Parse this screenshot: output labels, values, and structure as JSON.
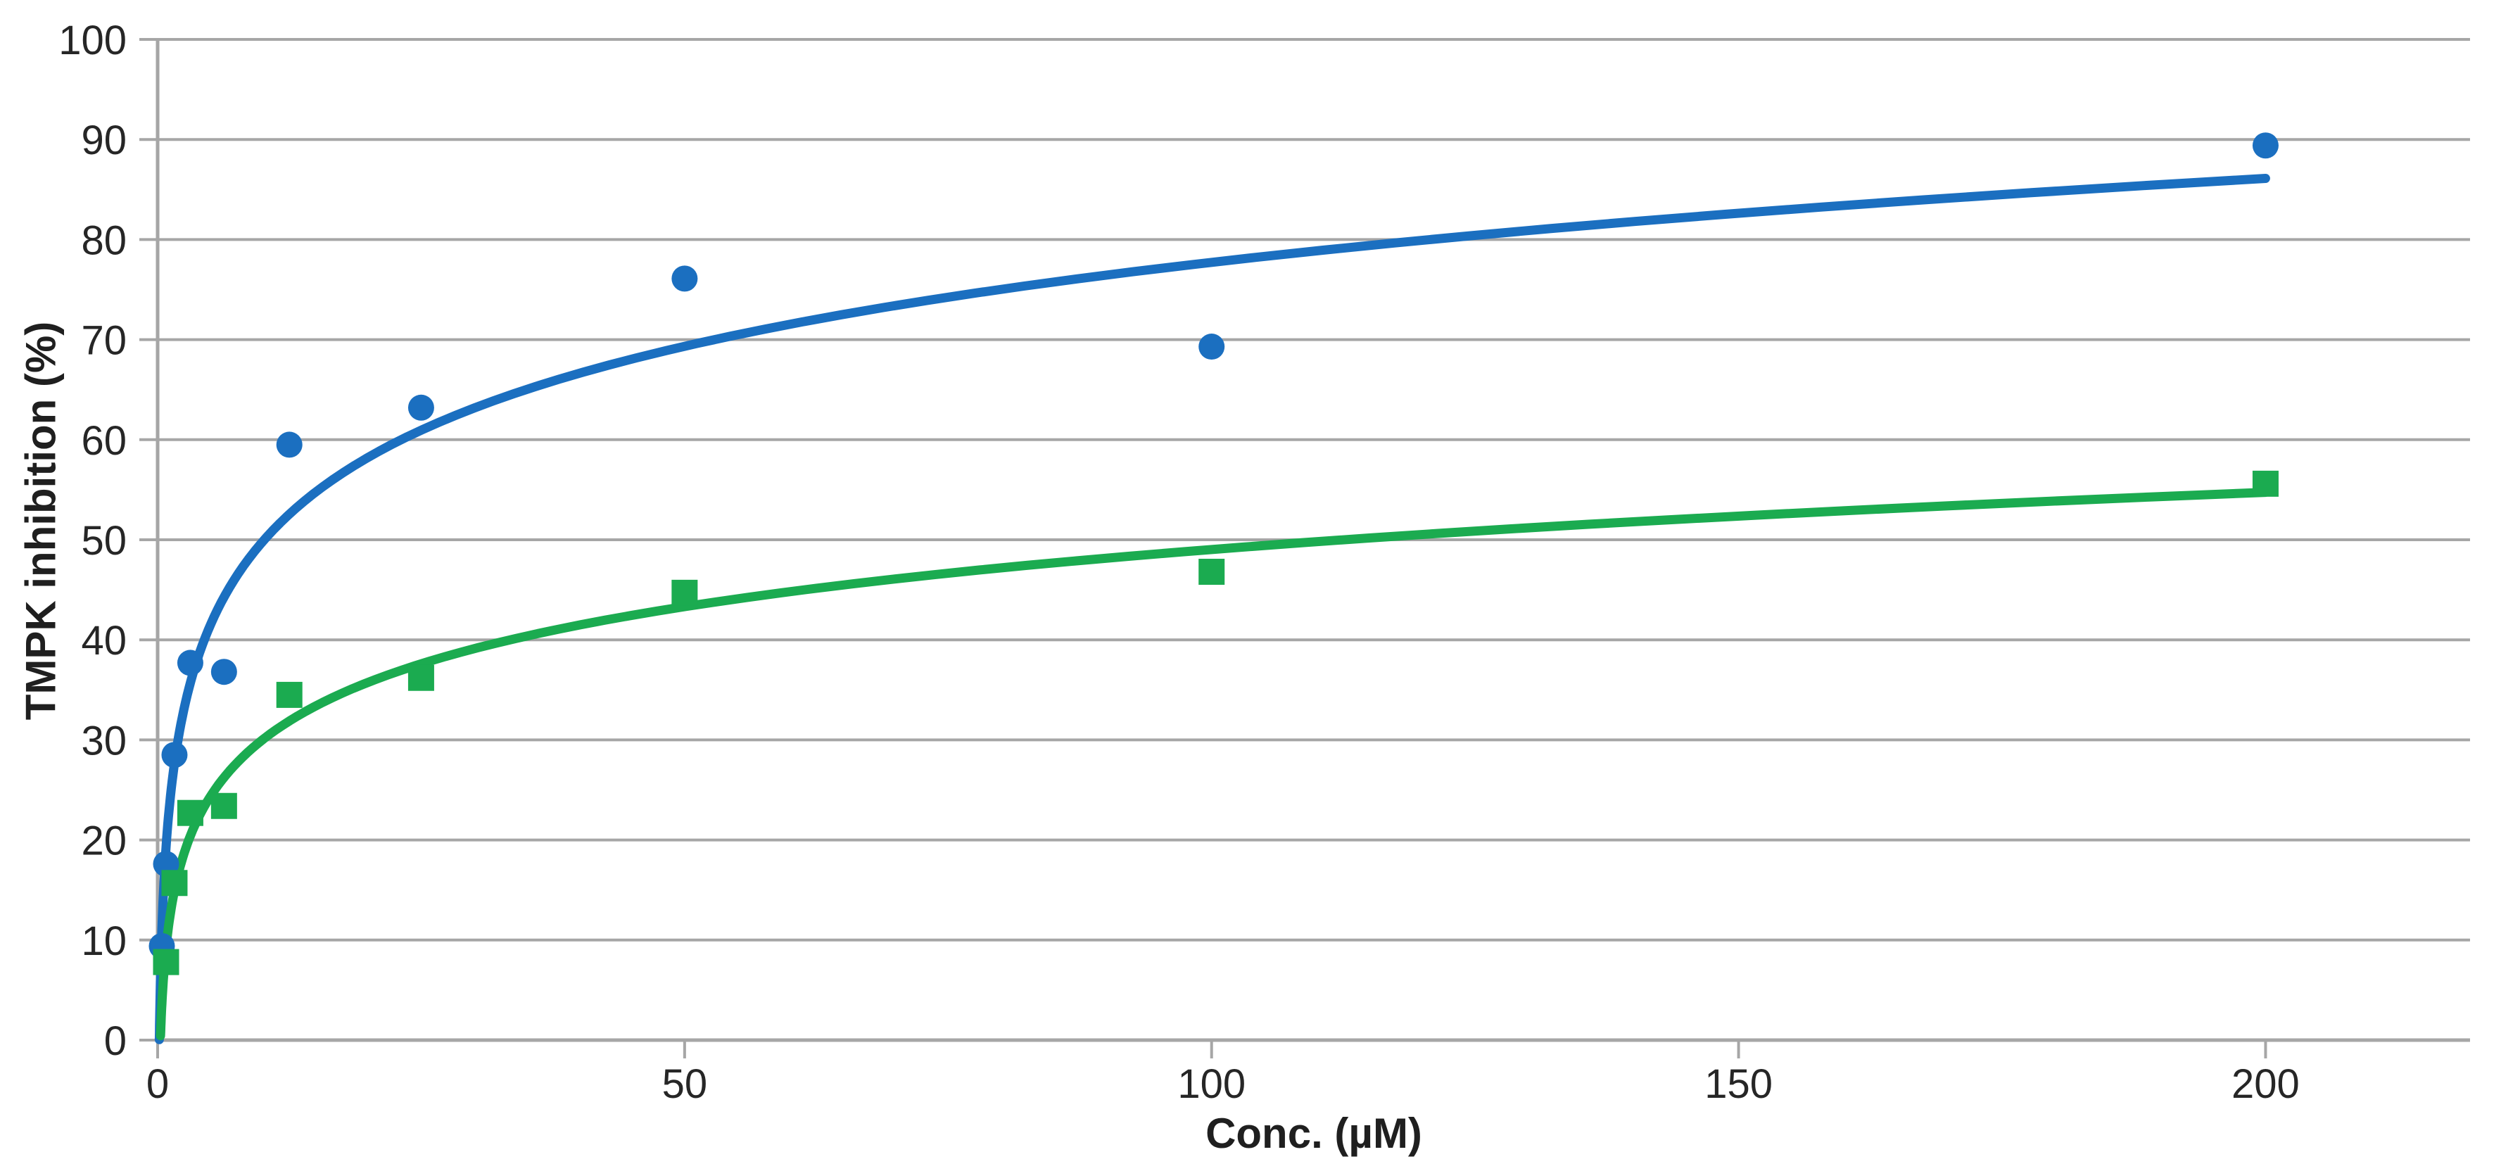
{
  "page": {
    "background": "#ffffff"
  },
  "chart_data": {
    "type": "scatter",
    "title": "",
    "xlabel": "Conc. (µM)",
    "ylabel": "TMPK inhibition (%)",
    "xlim": [
      0,
      219.4
    ],
    "ylim": [
      0,
      100
    ],
    "x_ticks": [
      0,
      50,
      100,
      150,
      200
    ],
    "y_ticks": [
      0,
      10,
      20,
      30,
      40,
      50,
      60,
      70,
      80,
      90,
      100
    ],
    "grid": "horizontal-only",
    "legend": "none",
    "colors": {
      "axis": "#A6A6A6",
      "gridline": "#A6A6A6",
      "tick_label": "#262626",
      "series1": "#1B6FC0",
      "series2": "#1BAB50"
    },
    "series": [
      {
        "name": "compound-1-blue-circles",
        "marker": "circle",
        "color": "#1B6FC0",
        "points": [
          [
            0.4,
            9.4
          ],
          [
            0.8,
            17.6
          ],
          [
            1.6,
            28.5
          ],
          [
            3.1,
            37.7
          ],
          [
            6.3,
            36.8
          ],
          [
            12.5,
            59.5
          ],
          [
            25,
            63.2
          ],
          [
            50,
            76.1
          ],
          [
            100,
            69.3
          ],
          [
            200,
            89.4
          ]
        ],
        "trendline": {
          "type": "log",
          "a": 12.1,
          "b": 22.0,
          "x_start": 0.163,
          "x_end": 200
        }
      },
      {
        "name": "compound-2-green-squares",
        "marker": "square",
        "color": "#1BAB50",
        "points": [
          [
            0.8,
            7.8
          ],
          [
            1.6,
            15.7
          ],
          [
            3.1,
            22.7
          ],
          [
            6.3,
            23.4
          ],
          [
            12.5,
            34.5
          ],
          [
            25,
            36.2
          ],
          [
            50,
            44.7
          ],
          [
            100,
            46.8
          ],
          [
            200,
            55.6
          ]
        ],
        "trendline": {
          "type": "log",
          "a": 8.24,
          "b": 11.08,
          "x_start": 0.26,
          "x_end": 200
        }
      }
    ]
  }
}
